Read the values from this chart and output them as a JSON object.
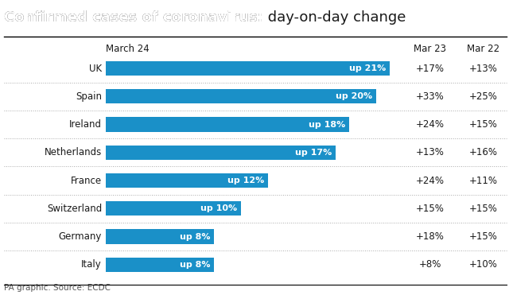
{
  "title_bold": "Confirmed cases of coronavirus:",
  "title_normal": " day-on-day change",
  "countries": [
    "UK",
    "Spain",
    "Ireland",
    "Netherlands",
    "France",
    "Switzerland",
    "Germany",
    "Italy"
  ],
  "values": [
    21,
    20,
    18,
    17,
    12,
    10,
    8,
    8
  ],
  "labels": [
    "up 21%",
    "up 20%",
    "up 18%",
    "up 17%",
    "up 12%",
    "up 10%",
    "up 8%",
    "up 8%"
  ],
  "mar23": [
    "+17%",
    "+33%",
    "+24%",
    "+13%",
    "+24%",
    "+15%",
    "+18%",
    "+8%"
  ],
  "mar22": [
    "+13%",
    "+25%",
    "+15%",
    "+16%",
    "+11%",
    "+15%",
    "+15%",
    "+10%"
  ],
  "bar_color": "#1a90c8",
  "bg_color": "#ffffff",
  "text_color": "#1a1a1a",
  "bar_label_color": "#ffffff",
  "col_header_march24": "March 24",
  "col_header_mar23": "Mar 23",
  "col_header_mar22": "Mar 22",
  "source_text": "PA graphic. Source: ECDC",
  "max_value": 21,
  "sep_color": "#aaaaaa",
  "title_line_color": "#000000"
}
